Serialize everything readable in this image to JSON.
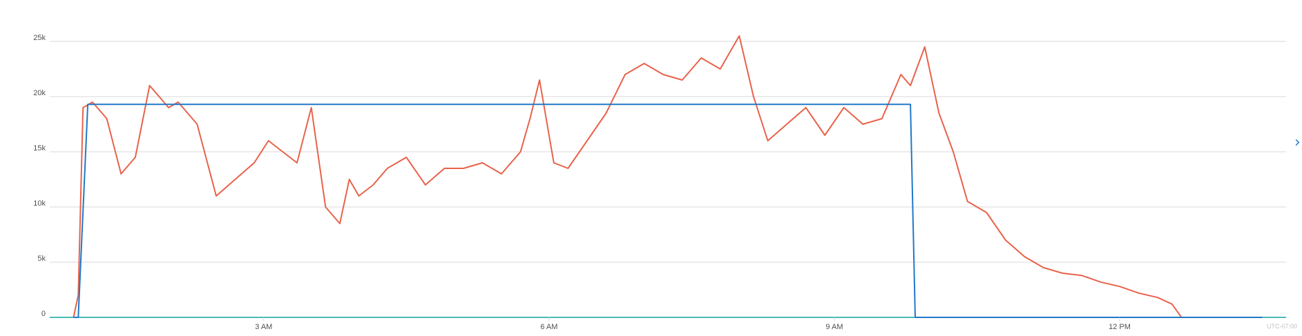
{
  "colors": {
    "series_blue": "#1f78c8",
    "series_orange": "#e8624a",
    "grid": "#d9d9d9",
    "axis": "#0ea5a0",
    "nav": "#2b7cd3"
  },
  "icons": {
    "prev": "chevron-left-icon",
    "next": "chevron-right-icon"
  },
  "timezone_label": "UTC-07:00",
  "chart_data": {
    "type": "line",
    "title": "",
    "xlabel": "",
    "ylabel": "",
    "x_unit": "hours",
    "xlim": [
      0.75,
      13.75
    ],
    "ylim": [
      0,
      27500
    ],
    "y_ticks": [
      0,
      5000,
      10000,
      15000,
      20000,
      25000
    ],
    "y_tick_labels": [
      "0",
      "5k",
      "10k",
      "15k",
      "20k",
      "25k"
    ],
    "x_ticks": [
      3,
      6,
      9,
      12
    ],
    "x_tick_labels": [
      "3 AM",
      "6 AM",
      "9 AM",
      "12 PM"
    ],
    "grid": true,
    "series": [
      {
        "color": "#1f78c8",
        "x": [
          1.0,
          1.05,
          1.15,
          1.25,
          2.0,
          3.0,
          4.0,
          5.0,
          6.0,
          7.0,
          8.0,
          9.0,
          9.5,
          9.8,
          9.8,
          9.85,
          13.5
        ],
        "y": [
          0,
          0,
          19300,
          19300,
          19300,
          19300,
          19300,
          19300,
          19300,
          19300,
          19300,
          19300,
          19300,
          19300,
          19300,
          0,
          0
        ]
      },
      {
        "color": "#e8624a",
        "x": [
          1.0,
          1.05,
          1.1,
          1.2,
          1.35,
          1.5,
          1.65,
          1.8,
          2.0,
          2.1,
          2.3,
          2.5,
          2.7,
          2.9,
          3.05,
          3.2,
          3.35,
          3.5,
          3.65,
          3.8,
          3.9,
          4.0,
          4.15,
          4.3,
          4.5,
          4.7,
          4.9,
          5.1,
          5.3,
          5.5,
          5.7,
          5.8,
          5.9,
          6.05,
          6.2,
          6.4,
          6.6,
          6.8,
          7.0,
          7.2,
          7.4,
          7.6,
          7.8,
          8.0,
          8.15,
          8.3,
          8.5,
          8.7,
          8.9,
          9.1,
          9.3,
          9.5,
          9.7,
          9.8,
          9.95,
          10.1,
          10.25,
          10.4,
          10.6,
          10.8,
          11.0,
          11.2,
          11.4,
          11.6,
          11.8,
          12.0,
          12.2,
          12.4,
          12.55,
          12.65
        ],
        "y": [
          0,
          2000,
          19000,
          19500,
          18000,
          13000,
          14500,
          21000,
          19000,
          19500,
          17500,
          11000,
          12500,
          14000,
          16000,
          15000,
          14000,
          19000,
          10000,
          8500,
          12500,
          11000,
          12000,
          13500,
          14500,
          12000,
          13500,
          13500,
          14000,
          13000,
          15000,
          18000,
          21500,
          14000,
          13500,
          16000,
          18500,
          22000,
          23000,
          22000,
          21500,
          23500,
          22500,
          25500,
          20000,
          16000,
          17500,
          19000,
          16500,
          19000,
          17500,
          18000,
          22000,
          21000,
          24500,
          18500,
          15000,
          10500,
          9500,
          7000,
          5500,
          4500,
          4000,
          3800,
          3200,
          2800,
          2200,
          1800,
          1200,
          0
        ]
      }
    ]
  }
}
